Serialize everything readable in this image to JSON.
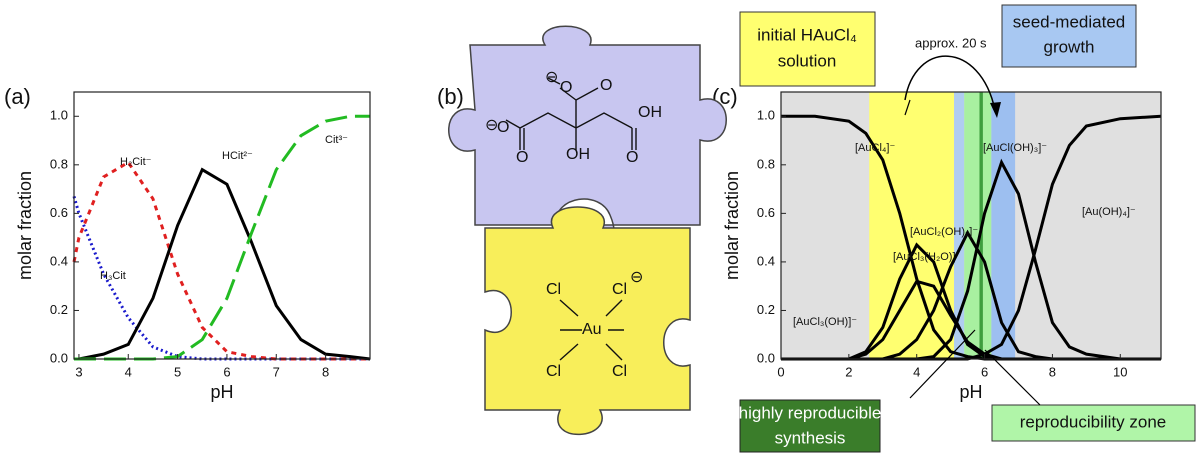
{
  "chart_data": [
    {
      "type": "line",
      "label": "(a)",
      "xlabel": "pH",
      "ylabel": "molar fraction",
      "xlim": [
        2.9,
        8.9
      ],
      "xticks": [
        3,
        4,
        5,
        6,
        7,
        8
      ],
      "ylim": [
        0,
        1.1
      ],
      "yticks": [
        {
          "value": 0,
          "label": "0.0"
        },
        0.2,
        0.4,
        0.6,
        0.8,
        {
          "value": 1,
          "label": "1.0"
        }
      ],
      "x": [
        2.9,
        3.0,
        3.5,
        4.0,
        4.5,
        5.0,
        5.5,
        6.0,
        6.5,
        7.0,
        7.5,
        8.0,
        8.5,
        8.9
      ],
      "series": [
        {
          "name": "H₃Cit",
          "color": "#1a1acc",
          "dash": "dotted",
          "values": [
            0.67,
            0.6,
            0.35,
            0.17,
            0.05,
            0.01,
            0,
            0,
            0,
            0,
            0,
            0,
            0,
            0
          ]
        },
        {
          "name": "H₂Cit⁻",
          "color": "#e02020",
          "dash": "dashed",
          "values": [
            0.4,
            0.5,
            0.75,
            0.81,
            0.66,
            0.35,
            0.13,
            0.03,
            0.01,
            0,
            0,
            0,
            0,
            0
          ]
        },
        {
          "name": "HCit²⁻",
          "color": "#000000",
          "dash": "solid",
          "values": [
            0,
            0,
            0.02,
            0.06,
            0.25,
            0.55,
            0.78,
            0.72,
            0.48,
            0.22,
            0.08,
            0.02,
            0.01,
            0
          ]
        },
        {
          "name": "Cit³⁻",
          "color": "#22bb22",
          "dash": "long-dash",
          "values": [
            0,
            0,
            0,
            0,
            0,
            0.01,
            0.08,
            0.25,
            0.52,
            0.78,
            0.92,
            0.98,
            1.0,
            1.0
          ]
        }
      ]
    },
    {
      "type": "line",
      "label": "(c)",
      "xlabel": "pH",
      "ylabel": "molar fraction",
      "xlim": [
        0,
        11.2
      ],
      "xticks": [
        0,
        2,
        4,
        6,
        8,
        10
      ],
      "ylim": [
        0,
        1.1
      ],
      "yticks": [
        {
          "value": 0,
          "label": "0.0"
        },
        0.2,
        0.4,
        0.6,
        0.8,
        {
          "value": 1,
          "label": "1.0"
        }
      ],
      "zones": [
        {
          "from": 2.6,
          "to": 5.1,
          "color": "#ffff70"
        },
        {
          "from": 5.1,
          "to": 5.4,
          "color": "#b0cdf0"
        },
        {
          "from": 5.4,
          "to": 6.2,
          "color": "#a8f0a0"
        },
        {
          "from": 5.85,
          "to": 5.95,
          "color": "#3e9e3e"
        },
        {
          "from": 6.2,
          "to": 6.9,
          "color": "#9dbff0"
        }
      ],
      "x": [
        0,
        1,
        2,
        2.5,
        3,
        3.5,
        4,
        4.5,
        5,
        5.5,
        6,
        6.5,
        7,
        7.5,
        8,
        8.5,
        9,
        10,
        11.2
      ],
      "series": [
        {
          "name": "[AuCl₄]⁻",
          "color": "#000000",
          "values": [
            1,
            1,
            0.98,
            0.93,
            0.82,
            0.6,
            0.33,
            0.12,
            0.03,
            0.01,
            0,
            0,
            0,
            0,
            0,
            0,
            0,
            0,
            0
          ]
        },
        {
          "name": "[AuCl₃(OH)]⁻",
          "color": "#000000",
          "values": [
            0,
            0,
            0,
            0.02,
            0.08,
            0.2,
            0.32,
            0.3,
            0.18,
            0.07,
            0.02,
            0,
            0,
            0,
            0,
            0,
            0,
            0,
            0
          ]
        },
        {
          "name": "[AuCl₃(H₂O)]",
          "color": "#000000",
          "values": [
            0,
            0,
            0,
            0.03,
            0.13,
            0.33,
            0.47,
            0.4,
            0.2,
            0.06,
            0.01,
            0,
            0,
            0,
            0,
            0,
            0,
            0,
            0
          ]
        },
        {
          "name": "[AuCl₂(OH)₂]⁻",
          "color": "#000000",
          "values": [
            0,
            0,
            0,
            0,
            0,
            0.02,
            0.08,
            0.2,
            0.38,
            0.52,
            0.4,
            0.15,
            0.03,
            0.01,
            0,
            0,
            0,
            0,
            0
          ]
        },
        {
          "name": "[AuCl(OH)₃]⁻",
          "color": "#000000",
          "values": [
            0,
            0,
            0,
            0,
            0,
            0,
            0,
            0.01,
            0.08,
            0.28,
            0.6,
            0.81,
            0.68,
            0.4,
            0.15,
            0.05,
            0.02,
            0,
            0
          ]
        },
        {
          "name": "[Au(OH)₄]⁻",
          "color": "#000000",
          "values": [
            0,
            0,
            0,
            0,
            0,
            0,
            0,
            0,
            0,
            0,
            0.02,
            0.06,
            0.2,
            0.45,
            0.72,
            0.88,
            0.96,
            0.99,
            1.0
          ]
        }
      ],
      "annotations": {
        "initial": [
          "initial HAuCl₄",
          "solution"
        ],
        "time": "approx. 20 s",
        "seed": [
          "seed-mediated",
          "growth"
        ],
        "synthesis": [
          "highly reproducible",
          "synthesis"
        ],
        "zone": "reproducibility zone"
      }
    }
  ],
  "diagram": {
    "label": "(b)",
    "citrate": [
      "⊖",
      "O",
      "O",
      "⊖",
      "O",
      "OH",
      "O",
      "OH",
      "O"
    ],
    "gold": [
      "Cl",
      "Cl",
      "⊖",
      "Au",
      "Cl",
      "Cl"
    ]
  }
}
